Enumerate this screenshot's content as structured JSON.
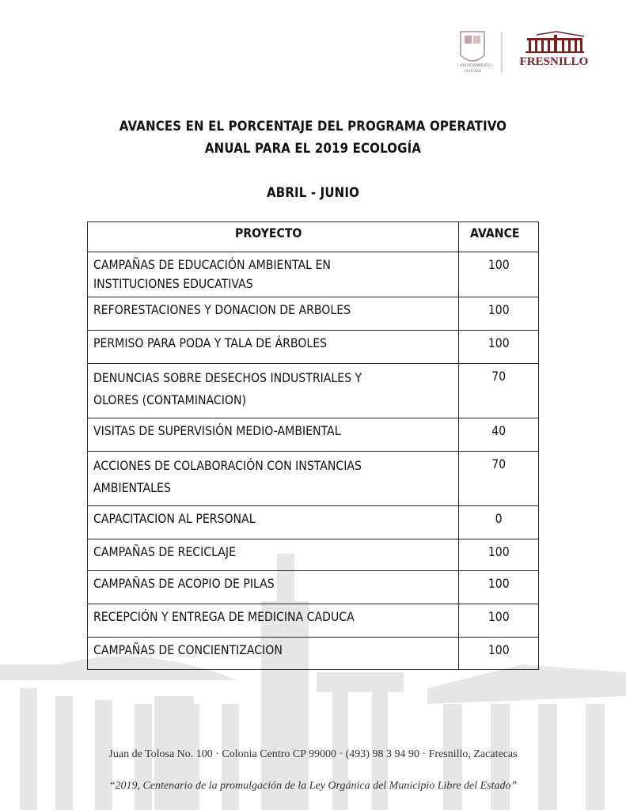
{
  "header": {
    "logo_left_text": "H. AYUNTAMIENTO 2018-2021",
    "logo_right_text": "FRESNILLO",
    "brand_color": "#7a1f24"
  },
  "document": {
    "title_line1": "AVANCES EN EL PORCENTAJE DEL PROGRAMA OPERATIVO",
    "title_line2": "ANUAL PARA EL 2019 ECOLOGÍA",
    "period": "ABRIL - JUNIO"
  },
  "table": {
    "headers": [
      "PROYECTO",
      "AVANCE"
    ],
    "rows": [
      {
        "proyecto": [
          "CAMPAÑAS DE EDUCACIÓN AMBIENTAL EN",
          "INSTITUCIONES EDUCATIVAS"
        ],
        "avance": "100"
      },
      {
        "proyecto": [
          "REFORESTACIONES Y DONACION DE ARBOLES"
        ],
        "avance": "100"
      },
      {
        "proyecto": [
          "PERMISO PARA PODA Y TALA DE ÁRBOLES"
        ],
        "avance": "100"
      },
      {
        "proyecto": [
          "DENUNCIAS SOBRE DESECHOS INDUSTRIALES Y",
          "OLORES (CONTAMINACION)"
        ],
        "avance": "70"
      },
      {
        "proyecto": [
          "VISITAS DE SUPERVISIÓN MEDIO-AMBIENTAL"
        ],
        "avance": "40"
      },
      {
        "proyecto": [
          "ACCIONES DE COLABORACIÓN CON INSTANCIAS",
          "AMBIENTALES"
        ],
        "avance": "70"
      },
      {
        "proyecto": [
          "CAPACITACION AL PERSONAL"
        ],
        "avance": "0"
      },
      {
        "proyecto": [
          "CAMPAÑAS DE RECICLAJE"
        ],
        "avance": "100"
      },
      {
        "proyecto": [
          "CAMPAÑAS DE ACOPIO DE PILAS"
        ],
        "avance": "100"
      },
      {
        "proyecto": [
          "RECEPCIÓN Y ENTREGA DE MEDICINA CADUCA"
        ],
        "avance": "100"
      },
      {
        "proyecto": [
          "CAMPAÑAS DE CONCIENTIZACION"
        ],
        "avance": "100"
      }
    ]
  },
  "footer": {
    "address": "Juan de Tolosa No. 100 · Colonia Centro CP 99000 · (493) 98 3 94 90 · Fresnillo, Zacatecas",
    "motto": "“2019, Centenario de la promulgación de la Ley Orgánica del Municipio Libre del Estado”"
  }
}
